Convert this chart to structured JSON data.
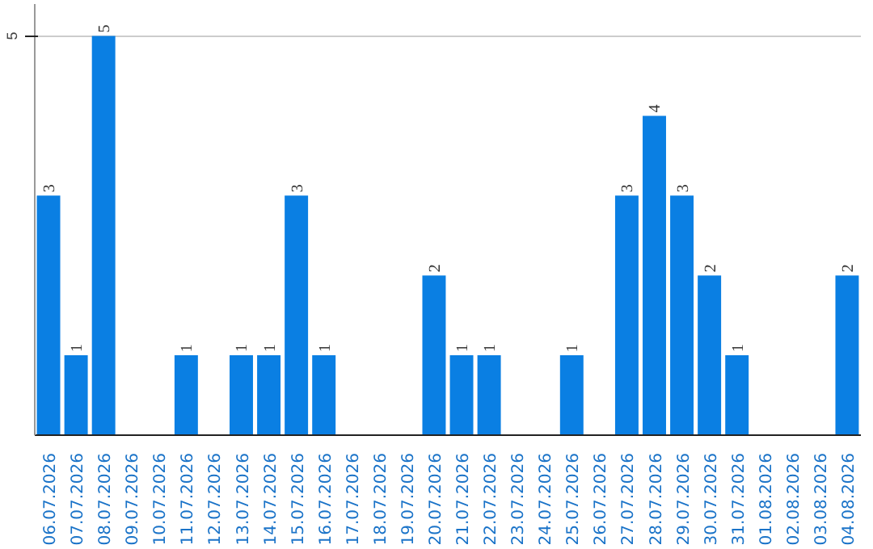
{
  "chart_data": {
    "type": "bar",
    "categories": [
      "06.07.2026",
      "07.07.2026",
      "08.07.2026",
      "09.07.2026",
      "10.07.2026",
      "11.07.2026",
      "12.07.2026",
      "13.07.2026",
      "14.07.2026",
      "15.07.2026",
      "16.07.2026",
      "17.07.2026",
      "18.07.2026",
      "19.07.2026",
      "20.07.2026",
      "21.07.2026",
      "22.07.2026",
      "23.07.2026",
      "24.07.2026",
      "25.07.2026",
      "26.07.2026",
      "27.07.2026",
      "28.07.2026",
      "29.07.2026",
      "30.07.2026",
      "31.07.2026",
      "01.08.2026",
      "02.08.2026",
      "03.08.2026",
      "04.08.2026"
    ],
    "values": [
      3,
      1,
      5,
      0,
      0,
      1,
      0,
      1,
      1,
      3,
      1,
      0,
      0,
      0,
      2,
      1,
      1,
      0,
      0,
      1,
      0,
      3,
      4,
      3,
      2,
      1,
      0,
      0,
      0,
      2
    ],
    "value_labels": [
      "3",
      "1",
      "5",
      null,
      null,
      "1",
      null,
      "1",
      "1",
      "3",
      "1",
      null,
      null,
      null,
      "2",
      "1",
      "1",
      null,
      null,
      "1",
      null,
      "3",
      "4",
      "3",
      "2",
      "1",
      null,
      null,
      null,
      "2"
    ],
    "color": "#0a7fe3",
    "ylim": [
      0,
      5.4
    ],
    "yticks": [
      5
    ],
    "grid": "y"
  }
}
